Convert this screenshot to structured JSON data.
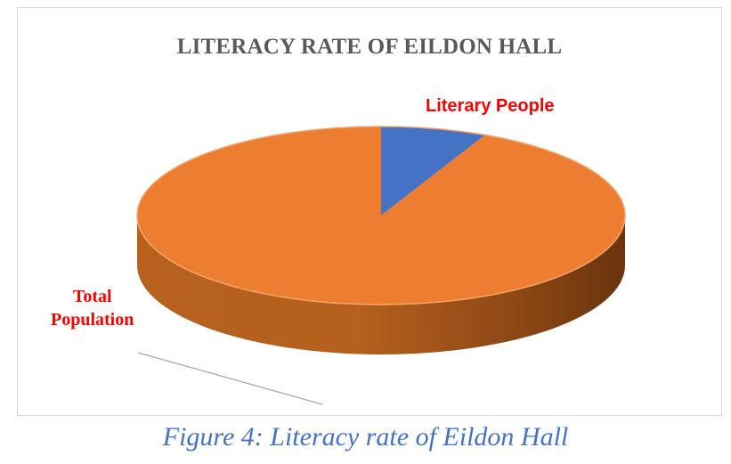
{
  "chart_data": {
    "type": "pie",
    "title": "LITERACY RATE OF EILDON HALL",
    "series": [
      {
        "name": "",
        "slices": [
          {
            "label": "Literary People",
            "value": 7,
            "color": "#4472c4"
          },
          {
            "label": "Total Population",
            "value": 93,
            "color": "#ed7d31"
          }
        ]
      }
    ],
    "style": "3d",
    "legend": "none"
  },
  "labels": {
    "literary": "Literary People",
    "total_line1": "Total",
    "total_line2": "Population"
  },
  "caption": "Figure 4: Literacy rate of Eildon Hall",
  "colors": {
    "label_text": "#ff0000",
    "caption_text": "#4472c4",
    "title_text": "#595959"
  }
}
